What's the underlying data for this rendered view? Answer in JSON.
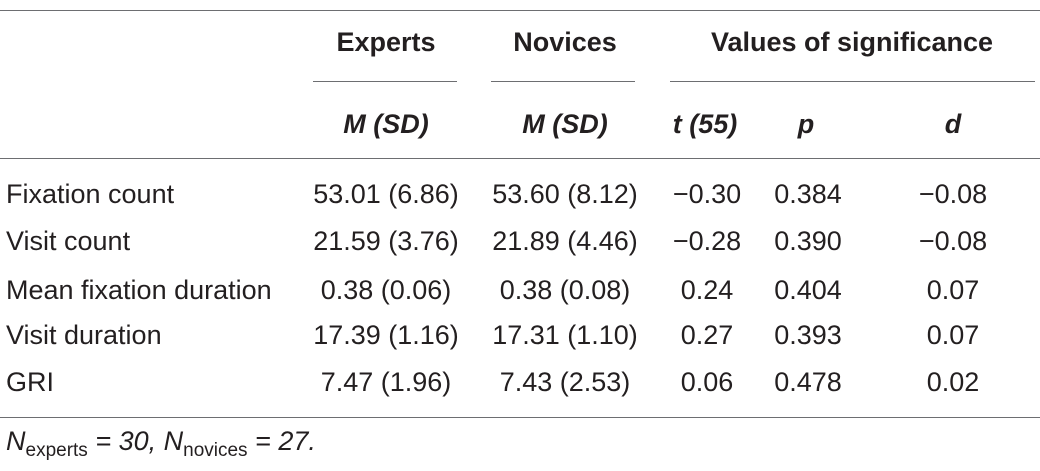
{
  "table": {
    "group_headers": {
      "experts": "Experts",
      "novices": "Novices",
      "significance": "Values of significance"
    },
    "sub_headers": {
      "experts": "M (SD)",
      "novices": "M (SD)",
      "t": "t (55)",
      "p": "p",
      "d": "d"
    },
    "rows": [
      {
        "label": "Fixation count",
        "experts": "53.01 (6.86)",
        "novices": "53.60 (8.12)",
        "t": "−0.30",
        "p": "0.384",
        "d": "−0.08"
      },
      {
        "label": "Visit count",
        "experts": "21.59 (3.76)",
        "novices": "21.89 (4.46)",
        "t": "−0.28",
        "p": "0.390",
        "d": "−0.08"
      },
      {
        "label": "Mean fixation duration",
        "experts": "0.38 (0.06)",
        "novices": "0.38 (0.08)",
        "t": "0.24",
        "p": "0.404",
        "d": "0.07"
      },
      {
        "label": "Visit duration",
        "experts": "17.39 (1.16)",
        "novices": "17.31 (1.10)",
        "t": "0.27",
        "p": "0.393",
        "d": "0.07"
      },
      {
        "label": "GRI",
        "experts": "7.47 (1.96)",
        "novices": "7.43 (2.53)",
        "t": "0.06",
        "p": "0.478",
        "d": "0.02"
      }
    ]
  },
  "note": {
    "n1_symbol": "N",
    "n1_sub": "experts",
    "n1_value": " = 30, ",
    "n2_symbol": "N",
    "n2_sub": "novices",
    "n2_value": " = 27."
  }
}
